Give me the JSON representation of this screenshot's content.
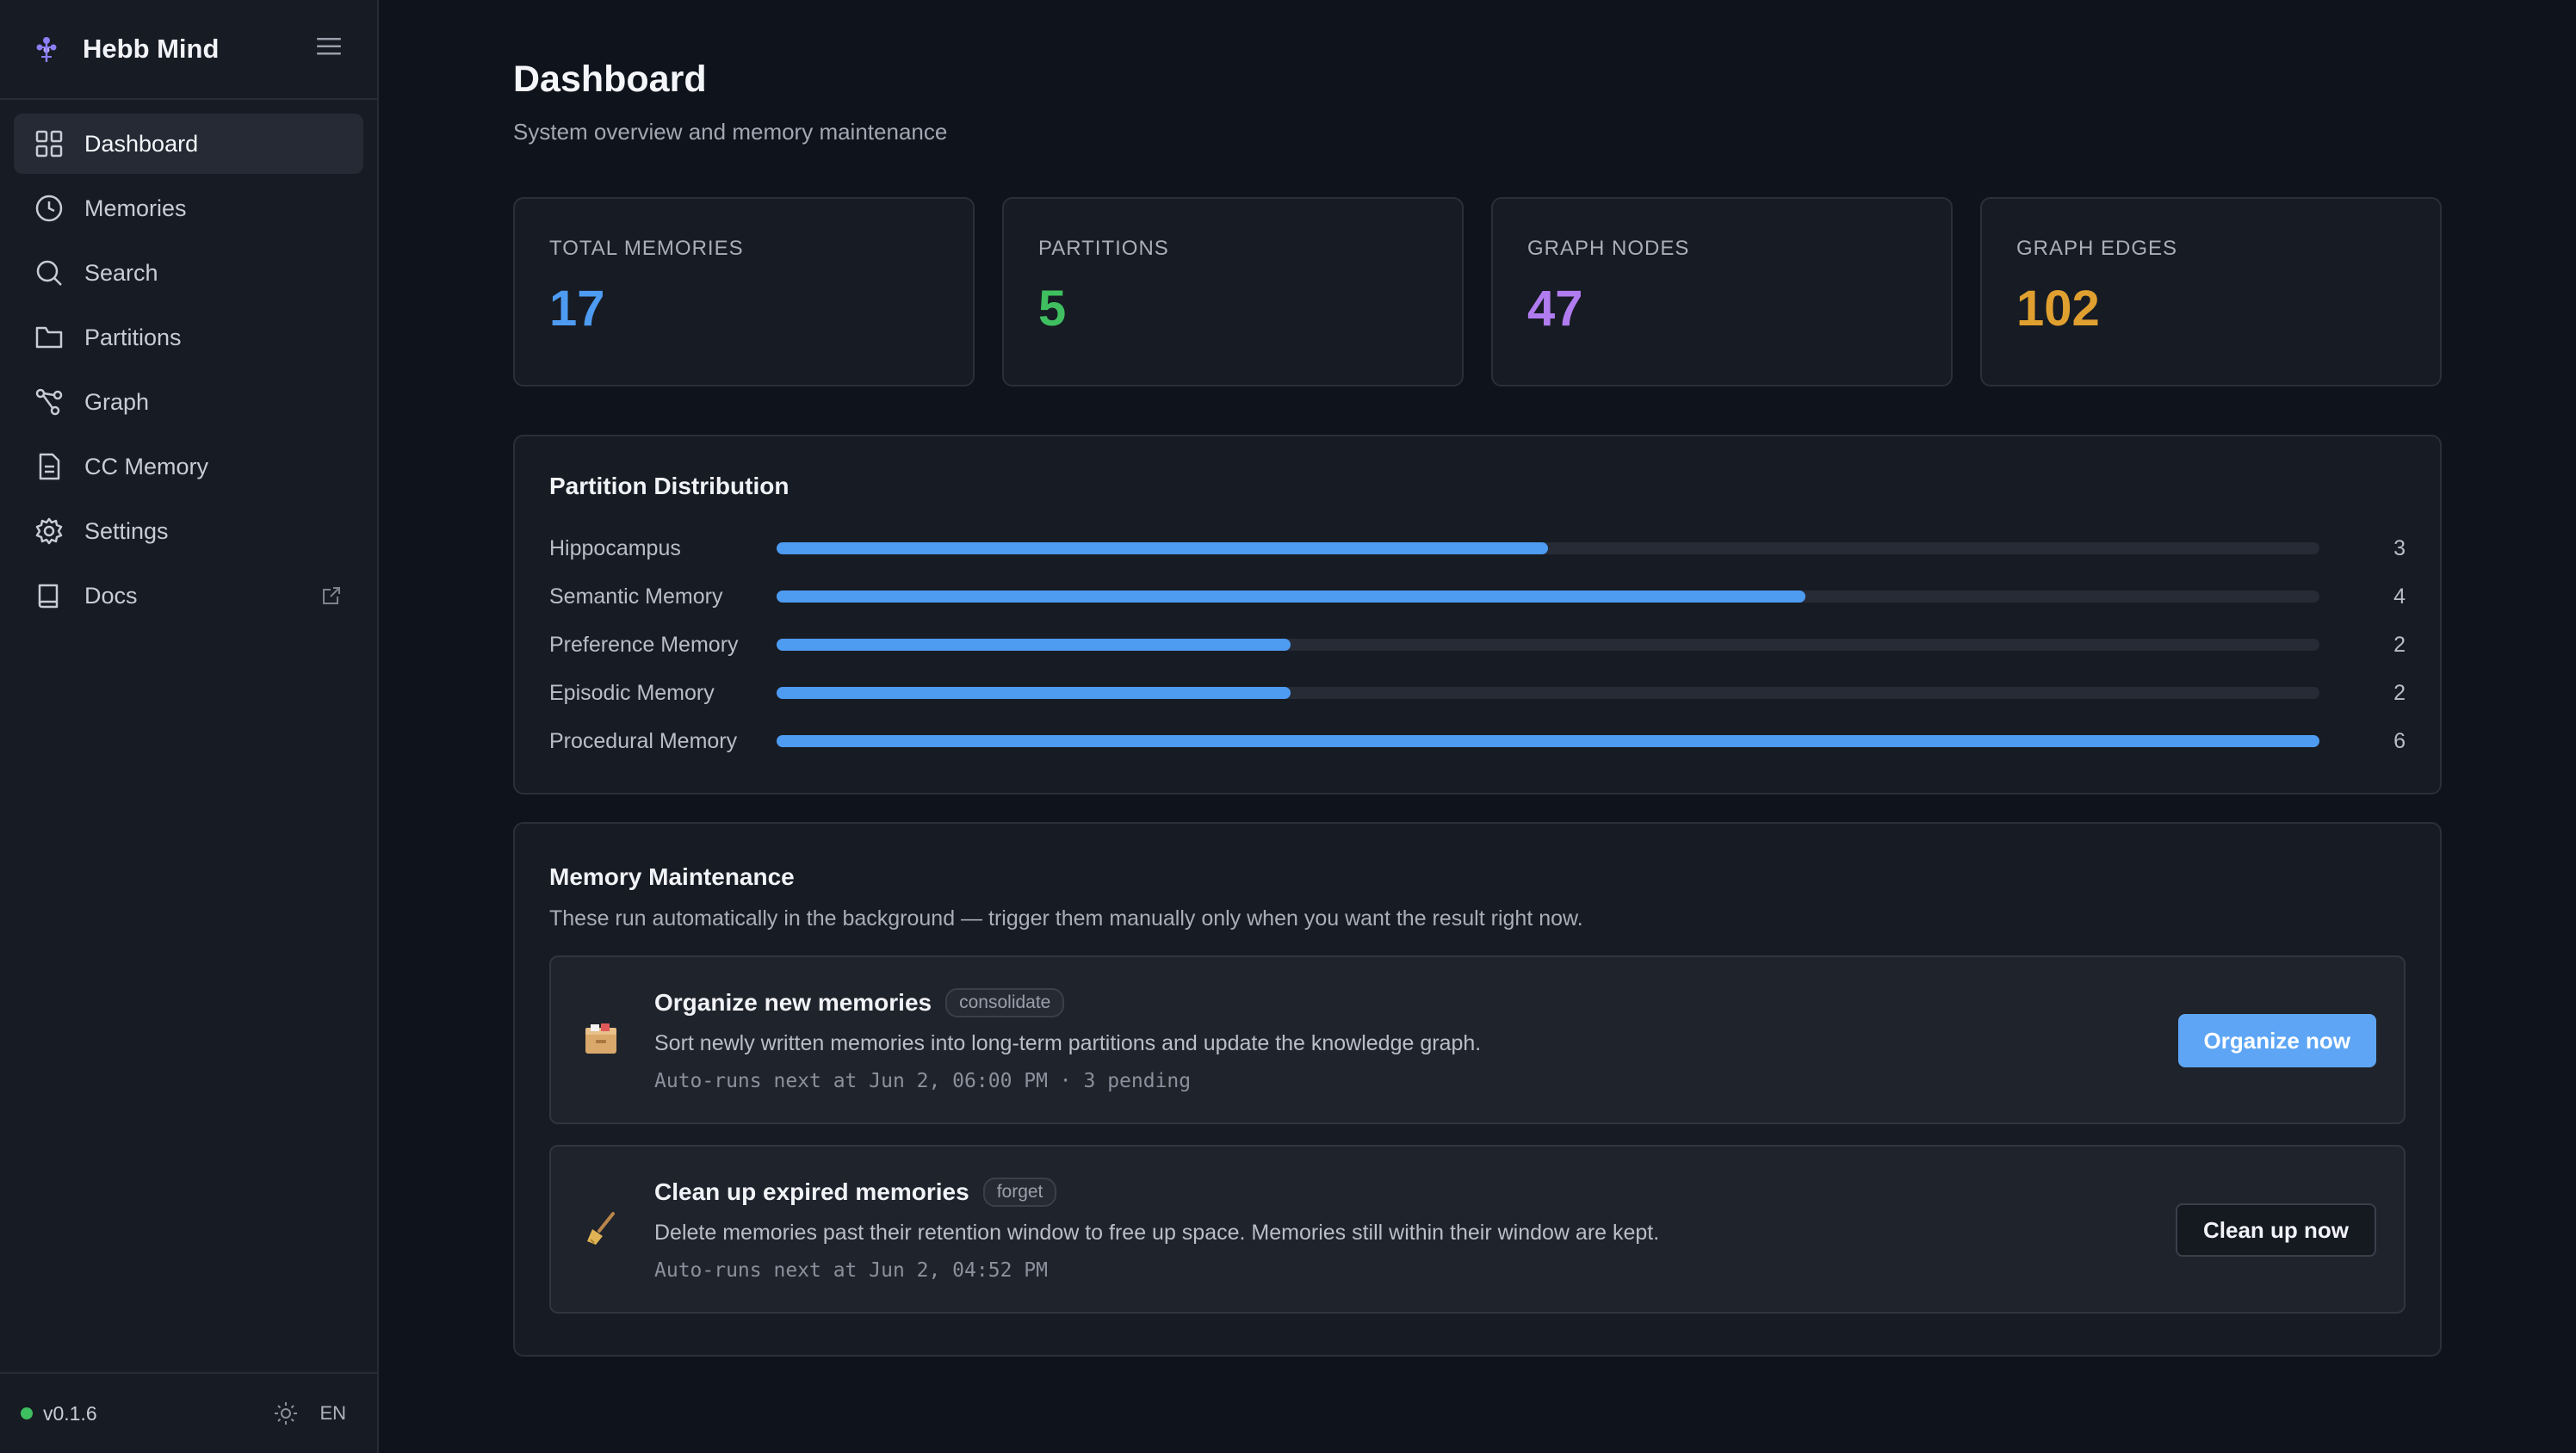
{
  "app": {
    "name": "Hebb Mind",
    "version": "v0.1.6",
    "lang": "EN"
  },
  "sidebar": {
    "items": [
      {
        "label": "Dashboard",
        "icon": "grid-icon"
      },
      {
        "label": "Memories",
        "icon": "clock-icon"
      },
      {
        "label": "Search",
        "icon": "search-icon"
      },
      {
        "label": "Partitions",
        "icon": "folder-icon"
      },
      {
        "label": "Graph",
        "icon": "graph-icon"
      },
      {
        "label": "CC Memory",
        "icon": "document-icon"
      },
      {
        "label": "Settings",
        "icon": "gear-icon"
      },
      {
        "label": "Docs",
        "icon": "book-icon"
      }
    ]
  },
  "header": {
    "title": "Dashboard",
    "subtitle": "System overview and memory maintenance"
  },
  "stats": [
    {
      "label": "TOTAL MEMORIES",
      "value": "17",
      "color": "#4e9bf2"
    },
    {
      "label": "PARTITIONS",
      "value": "5",
      "color": "#3fbf5f"
    },
    {
      "label": "GRAPH NODES",
      "value": "47",
      "color": "#b07cf0"
    },
    {
      "label": "GRAPH EDGES",
      "value": "102",
      "color": "#e0a030"
    }
  ],
  "distribution": {
    "title": "Partition Distribution",
    "max": 6,
    "rows": [
      {
        "label": "Hippocampus",
        "count": 3
      },
      {
        "label": "Semantic Memory",
        "count": 4
      },
      {
        "label": "Preference Memory",
        "count": 2
      },
      {
        "label": "Episodic Memory",
        "count": 2
      },
      {
        "label": "Procedural Memory",
        "count": 6
      }
    ]
  },
  "maintenance": {
    "title": "Memory Maintenance",
    "description": "These run automatically in the background — trigger them manually only when you want the result right now.",
    "tasks": [
      {
        "title": "Organize new memories",
        "tag": "consolidate",
        "description": "Sort newly written memories into long-term partitions and update the knowledge graph.",
        "schedule": "Auto-runs next at Jun 2, 06:00 PM · 3 pending",
        "button": "Organize now",
        "icon": "file-box-icon"
      },
      {
        "title": "Clean up expired memories",
        "tag": "forget",
        "description": "Delete memories past their retention window to free up space. Memories still within their window are kept.",
        "schedule": "Auto-runs next at Jun 2, 04:52 PM",
        "button": "Clean up now",
        "icon": "broom-icon"
      }
    ]
  }
}
